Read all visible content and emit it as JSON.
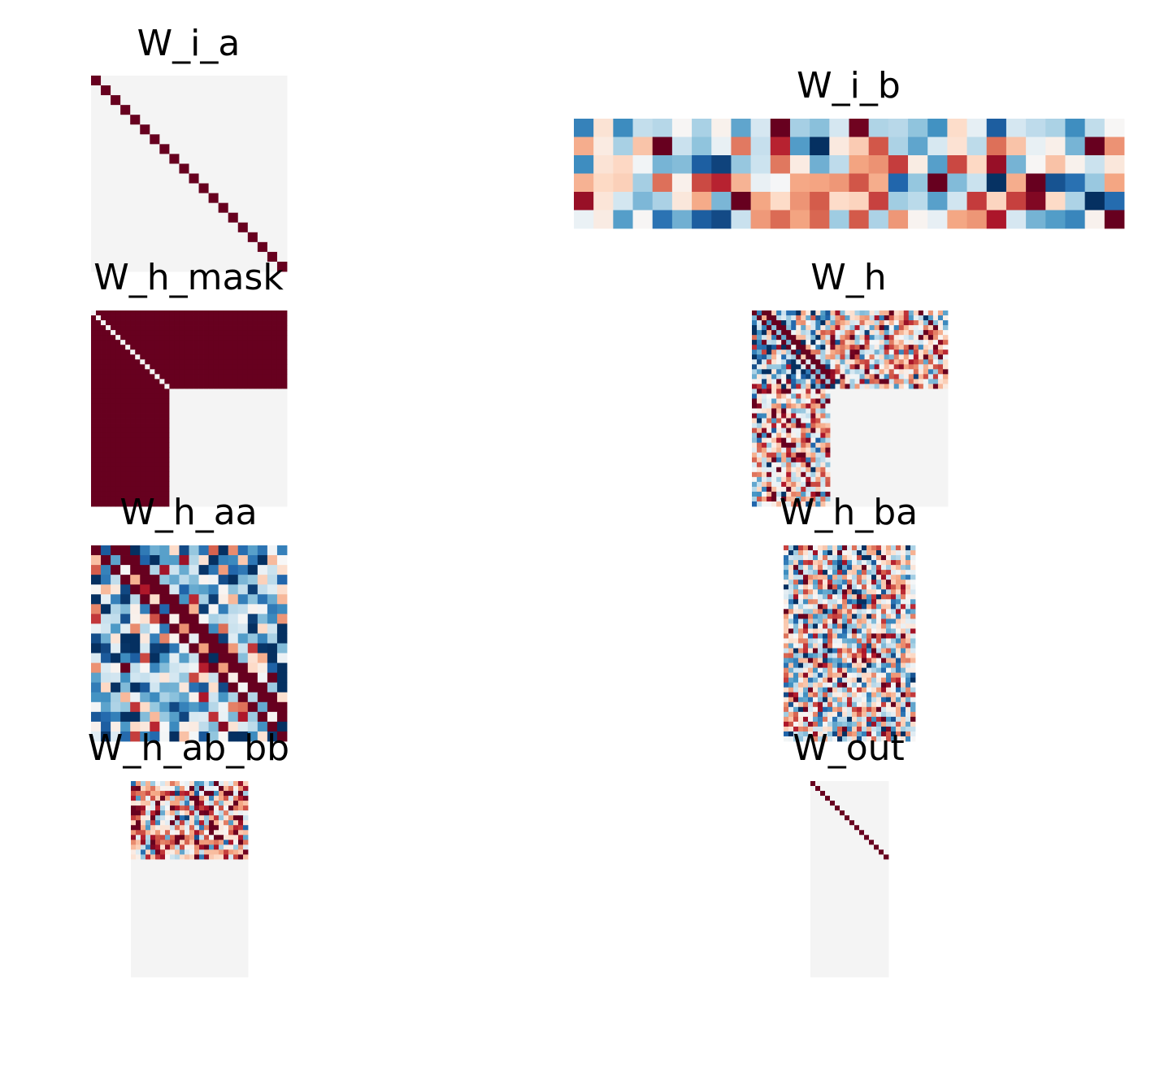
{
  "colors": {
    "colormap": "RdBu_r",
    "ramp": [
      "#053061",
      "#2166ac",
      "#4393c3",
      "#92c5de",
      "#d1e5f0",
      "#f7f7f7",
      "#fddbc7",
      "#f4a582",
      "#d6604d",
      "#b2182b",
      "#67001f"
    ],
    "zero": "#f4f4f4",
    "background": "#ffffff"
  },
  "chart_data": [
    {
      "type": "heatmap",
      "title": "W_i_a",
      "kind": "identity",
      "rows": 20,
      "cols": 20,
      "vmin": -1,
      "vmax": 1,
      "grid": false,
      "axes": false
    },
    {
      "type": "heatmap",
      "title": "W_i_b",
      "kind": "random",
      "rows": 6,
      "cols": 28,
      "seed": 11,
      "vmin": -1,
      "vmax": 1,
      "grid": false,
      "axes": false
    },
    {
      "type": "heatmap",
      "title": "W_h_mask",
      "kind": "mask",
      "rows": 40,
      "cols": 40,
      "block": 16,
      "vmin": -1,
      "vmax": 1,
      "grid": false,
      "axes": false
    },
    {
      "type": "heatmap",
      "title": "W_h",
      "kind": "full",
      "rows": 40,
      "cols": 40,
      "block": 16,
      "seed": 23,
      "vmin": -1,
      "vmax": 1,
      "grid": false,
      "axes": false
    },
    {
      "type": "heatmap",
      "title": "W_h_aa",
      "kind": "banded",
      "rows": 20,
      "cols": 20,
      "offsets": [
        0,
        1,
        2,
        3
      ],
      "seed": 37,
      "vmin": -1,
      "vmax": 1,
      "grid": false,
      "axes": false
    },
    {
      "type": "heatmap",
      "title": "W_h_ba",
      "kind": "random",
      "rows": 40,
      "cols": 27,
      "seed": 41,
      "vmin": -1,
      "vmax": 1,
      "grid": false,
      "axes": false
    },
    {
      "type": "heatmap",
      "title": "W_h_ab_bb",
      "kind": "topblock",
      "rows": 40,
      "cols": 24,
      "block": 16,
      "seed": 53,
      "bias": 0.35,
      "vmin": -1,
      "vmax": 1,
      "grid": false,
      "axes": false
    },
    {
      "type": "heatmap",
      "title": "W_out",
      "kind": "partial_identity",
      "rows": 40,
      "cols": 16,
      "vmin": -1,
      "vmax": 1,
      "grid": false,
      "axes": false
    }
  ]
}
